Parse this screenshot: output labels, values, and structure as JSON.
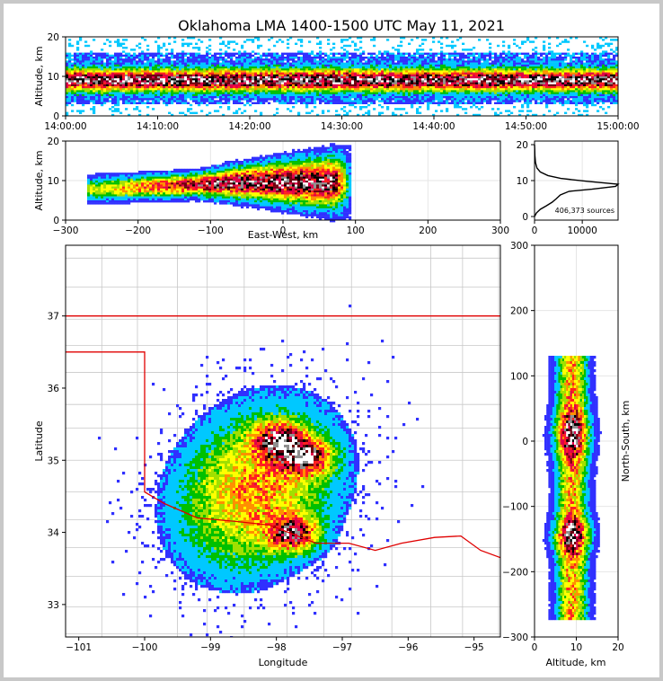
{
  "title": "Oklahoma LMA 1400-1500 UTC May 11, 2021",
  "colors": {
    "frame": "#c8c8c8",
    "state_border": "#e00000",
    "county_lines": "#c8c8c8",
    "density_scale": [
      "#3030ff",
      "#00c8ff",
      "#00c000",
      "#a0e000",
      "#ffff00",
      "#ff9000",
      "#ff2020",
      "#e0004a",
      "#700010",
      "#000000",
      "#909090",
      "#ffffff"
    ]
  },
  "chart_data": [
    {
      "id": "time_height",
      "type": "heatmap",
      "xlabel": "",
      "ylabel": "Altitude, km",
      "xlim": [
        "14:00:00",
        "15:00:00"
      ],
      "ylim": [
        0,
        20
      ],
      "xticks": [
        "14:00:00",
        "14:10:00",
        "14:20:00",
        "14:30:00",
        "14:40:00",
        "14:50:00",
        "15:00:00"
      ],
      "yticks": [
        "0",
        "10",
        "20"
      ],
      "peak_altitude_km": 9,
      "core_band_km": [
        6,
        11
      ],
      "extent_km": [
        3,
        19
      ]
    },
    {
      "id": "east_west_altitude",
      "type": "heatmap",
      "xlabel": "East-West, km",
      "ylabel": "Altitude, km",
      "xlim": [
        -300,
        300
      ],
      "ylim": [
        0,
        20
      ],
      "xticks": [
        "−300",
        "−200",
        "−100",
        "0",
        "100",
        "200",
        "300"
      ],
      "yticks": [
        "0",
        "10",
        "20"
      ]
    },
    {
      "id": "altitude_histogram",
      "type": "line",
      "xlim": [
        0,
        17500
      ],
      "ylim": [
        0,
        20
      ],
      "xticks": [
        "0",
        "10000"
      ],
      "yticks": [
        "0",
        "10",
        "20"
      ],
      "annotation": "406,373 sources",
      "points": [
        [
          0,
          0
        ],
        [
          400,
          1
        ],
        [
          1200,
          2
        ],
        [
          2500,
          3
        ],
        [
          3700,
          4
        ],
        [
          4600,
          5
        ],
        [
          5400,
          6
        ],
        [
          7200,
          7
        ],
        [
          12000,
          7.6
        ],
        [
          17000,
          8.4
        ],
        [
          17500,
          9
        ],
        [
          11000,
          9.8
        ],
        [
          5500,
          10.6
        ],
        [
          2800,
          11.4
        ],
        [
          1200,
          12.4
        ],
        [
          500,
          13.5
        ],
        [
          200,
          15
        ],
        [
          80,
          17
        ],
        [
          30,
          19
        ],
        [
          0,
          20
        ]
      ]
    },
    {
      "id": "plan_view",
      "type": "heatmap",
      "xlabel": "Longitude",
      "ylabel": "Latitude",
      "xlim": [
        -101.2,
        -94.6
      ],
      "ylim": [
        32.55,
        37.98
      ],
      "xticks": [
        "−101",
        "−100",
        "−99",
        "−98",
        "−97",
        "−96",
        "−95"
      ],
      "yticks": [
        "33",
        "34",
        "35",
        "36",
        "37"
      ],
      "storm_cores": [
        {
          "lon": -97.95,
          "lat": 35.28
        },
        {
          "lon": -97.55,
          "lat": 35.05
        },
        {
          "lon": -97.75,
          "lat": 33.98
        }
      ]
    },
    {
      "id": "altitude_north_south",
      "type": "heatmap",
      "xlabel": "Altitude, km",
      "ylabel": "North-South, km",
      "xlim": [
        0,
        20
      ],
      "ylim": [
        -300,
        300
      ],
      "xticks": [
        "0",
        "10",
        "20"
      ],
      "yticks": [
        "−300",
        "−200",
        "−100",
        "0",
        "100",
        "200",
        "300"
      ]
    }
  ]
}
